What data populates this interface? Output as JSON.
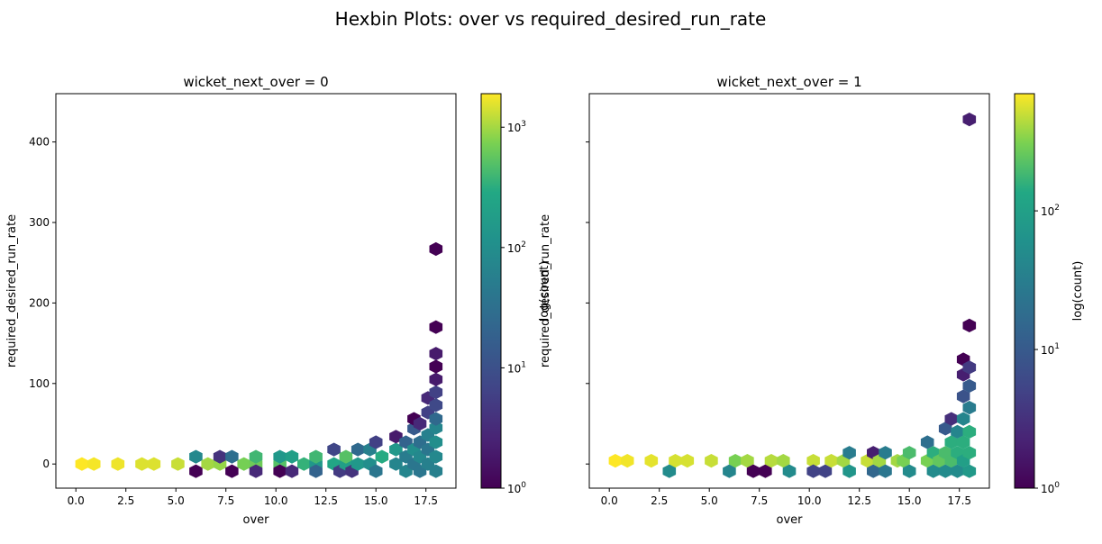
{
  "figure": {
    "suptitle": "Hexbin Plots: over vs required_desired_run_rate"
  },
  "chart_data": [
    {
      "type": "heatmap",
      "subtype": "hexbin",
      "title": "wicket_next_over = 0",
      "xlabel": "over",
      "ylabel": "required_desired_run_rate",
      "xlim": [
        -1,
        19
      ],
      "ylim": [
        -30,
        460
      ],
      "xticks": [
        0.0,
        2.5,
        5.0,
        7.5,
        10.0,
        12.5,
        15.0,
        17.5
      ],
      "xtick_labels": [
        "0.0",
        "2.5",
        "5.0",
        "7.5",
        "10.0",
        "12.5",
        "15.0",
        "17.5"
      ],
      "yticks": [
        0,
        100,
        200,
        300,
        400
      ],
      "ytick_labels": [
        "0",
        "100",
        "200",
        "300",
        "400"
      ],
      "colorbar": {
        "label": "log(count)",
        "scale": "log",
        "range": [
          1,
          1900
        ],
        "tick_labels": [
          {
            "value": 1,
            "base": "10",
            "exp": "0"
          },
          {
            "value": 10,
            "base": "10",
            "exp": "1"
          },
          {
            "value": 100,
            "base": "10",
            "exp": "2"
          },
          {
            "value": 1000,
            "base": "10",
            "exp": "3"
          }
        ]
      },
      "bins": [
        {
          "x": 0.3,
          "y": 0,
          "count": 1900
        },
        {
          "x": 0.9,
          "y": 0,
          "count": 1800
        },
        {
          "x": 2.1,
          "y": 0,
          "count": 1700
        },
        {
          "x": 3.3,
          "y": 0,
          "count": 1500
        },
        {
          "x": 3.9,
          "y": 0,
          "count": 1500
        },
        {
          "x": 5.1,
          "y": 0,
          "count": 1300
        },
        {
          "x": 6.0,
          "y": 9,
          "count": 80
        },
        {
          "x": 6.0,
          "y": -9,
          "count": 1
        },
        {
          "x": 6.6,
          "y": 0,
          "count": 1000
        },
        {
          "x": 7.2,
          "y": 0,
          "count": 900
        },
        {
          "x": 7.2,
          "y": 9,
          "count": 4
        },
        {
          "x": 7.8,
          "y": 9,
          "count": 30
        },
        {
          "x": 7.8,
          "y": -9,
          "count": 1
        },
        {
          "x": 8.4,
          "y": 0,
          "count": 700
        },
        {
          "x": 9.0,
          "y": 0,
          "count": 650
        },
        {
          "x": 9.0,
          "y": 9,
          "count": 400
        },
        {
          "x": 9.0,
          "y": -9,
          "count": 3
        },
        {
          "x": 10.2,
          "y": 0,
          "count": 500
        },
        {
          "x": 10.2,
          "y": 9,
          "count": 150
        },
        {
          "x": 10.2,
          "y": -9,
          "count": 1
        },
        {
          "x": 10.8,
          "y": 9,
          "count": 200
        },
        {
          "x": 10.8,
          "y": -9,
          "count": 3
        },
        {
          "x": 11.4,
          "y": 0,
          "count": 350
        },
        {
          "x": 12.0,
          "y": 0,
          "count": 150
        },
        {
          "x": 12.0,
          "y": 9,
          "count": 400
        },
        {
          "x": 12.0,
          "y": -9,
          "count": 20
        },
        {
          "x": 12.9,
          "y": 0,
          "count": 250
        },
        {
          "x": 12.9,
          "y": 18,
          "count": 7
        },
        {
          "x": 13.2,
          "y": -9,
          "count": 5
        },
        {
          "x": 13.5,
          "y": 0,
          "count": 200
        },
        {
          "x": 13.5,
          "y": 9,
          "count": 500
        },
        {
          "x": 13.8,
          "y": -9,
          "count": 4
        },
        {
          "x": 14.1,
          "y": 0,
          "count": 150
        },
        {
          "x": 14.1,
          "y": 18,
          "count": 25
        },
        {
          "x": 14.7,
          "y": 0,
          "count": 100
        },
        {
          "x": 14.7,
          "y": 18,
          "count": 60
        },
        {
          "x": 15.0,
          "y": -9,
          "count": 40
        },
        {
          "x": 15.0,
          "y": 27,
          "count": 6
        },
        {
          "x": 15.3,
          "y": 9,
          "count": 300
        },
        {
          "x": 16.0,
          "y": 0,
          "count": 70
        },
        {
          "x": 16.0,
          "y": 18,
          "count": 150
        },
        {
          "x": 16.0,
          "y": 34,
          "count": 2
        },
        {
          "x": 16.5,
          "y": -9,
          "count": 70
        },
        {
          "x": 16.5,
          "y": 9,
          "count": 50
        },
        {
          "x": 16.5,
          "y": 27,
          "count": 20
        },
        {
          "x": 16.9,
          "y": 0,
          "count": 40
        },
        {
          "x": 16.9,
          "y": 18,
          "count": 100
        },
        {
          "x": 16.9,
          "y": 44,
          "count": 15
        },
        {
          "x": 16.9,
          "y": 56,
          "count": 1
        },
        {
          "x": 17.2,
          "y": -9,
          "count": 40
        },
        {
          "x": 17.2,
          "y": 9,
          "count": 80
        },
        {
          "x": 17.2,
          "y": 27,
          "count": 30
        },
        {
          "x": 17.2,
          "y": 50,
          "count": 3
        },
        {
          "x": 17.6,
          "y": 0,
          "count": 60
        },
        {
          "x": 17.6,
          "y": 18,
          "count": 40
        },
        {
          "x": 17.6,
          "y": 36,
          "count": 60
        },
        {
          "x": 17.6,
          "y": 64,
          "count": 6
        },
        {
          "x": 17.6,
          "y": 82,
          "count": 3
        },
        {
          "x": 18.0,
          "y": -9,
          "count": 60
        },
        {
          "x": 18.0,
          "y": 9,
          "count": 80
        },
        {
          "x": 18.0,
          "y": 27,
          "count": 100
        },
        {
          "x": 18.0,
          "y": 45,
          "count": 70
        },
        {
          "x": 18.0,
          "y": 56,
          "count": 25
        },
        {
          "x": 18.0,
          "y": 73,
          "count": 8
        },
        {
          "x": 18.0,
          "y": 89,
          "count": 6
        },
        {
          "x": 18.0,
          "y": 105,
          "count": 2
        },
        {
          "x": 18.0,
          "y": 121,
          "count": 1
        },
        {
          "x": 18.0,
          "y": 137,
          "count": 2
        },
        {
          "x": 18.0,
          "y": 170,
          "count": 1
        },
        {
          "x": 18.0,
          "y": 267,
          "count": 1
        }
      ]
    },
    {
      "type": "heatmap",
      "subtype": "hexbin",
      "title": "wicket_next_over = 1",
      "xlabel": "over",
      "ylabel": "required_desired_run_rate",
      "xlim": [
        -1,
        19
      ],
      "ylim": [
        -30,
        460
      ],
      "xticks": [
        0.0,
        2.5,
        5.0,
        7.5,
        10.0,
        12.5,
        15.0,
        17.5
      ],
      "xtick_labels": [
        "0.0",
        "2.5",
        "5.0",
        "7.5",
        "10.0",
        "12.5",
        "15.0",
        "17.5"
      ],
      "yticks": [
        0,
        100,
        200,
        300,
        400
      ],
      "ytick_labels": [],
      "colorbar": {
        "label": "log(count)",
        "scale": "log",
        "range": [
          1,
          700
        ],
        "tick_labels": [
          {
            "value": 1,
            "base": "10",
            "exp": "0"
          },
          {
            "value": 10,
            "base": "10",
            "exp": "1"
          },
          {
            "value": 100,
            "base": "10",
            "exp": "2"
          }
        ]
      },
      "bins": [
        {
          "x": 0.3,
          "y": 4,
          "count": 700
        },
        {
          "x": 0.9,
          "y": 4,
          "count": 650
        },
        {
          "x": 2.1,
          "y": 4,
          "count": 600
        },
        {
          "x": 3.3,
          "y": 4,
          "count": 550
        },
        {
          "x": 3.9,
          "y": 4,
          "count": 550
        },
        {
          "x": 3.0,
          "y": -9,
          "count": 50
        },
        {
          "x": 5.1,
          "y": 4,
          "count": 500
        },
        {
          "x": 6.0,
          "y": -9,
          "count": 40
        },
        {
          "x": 6.3,
          "y": 4,
          "count": 300
        },
        {
          "x": 6.9,
          "y": 4,
          "count": 400
        },
        {
          "x": 7.2,
          "y": -9,
          "count": 1
        },
        {
          "x": 7.8,
          "y": -9,
          "count": 1
        },
        {
          "x": 8.1,
          "y": 4,
          "count": 450
        },
        {
          "x": 8.7,
          "y": 4,
          "count": 400
        },
        {
          "x": 9.0,
          "y": -9,
          "count": 50
        },
        {
          "x": 10.2,
          "y": 4,
          "count": 500
        },
        {
          "x": 10.2,
          "y": -9,
          "count": 5
        },
        {
          "x": 10.8,
          "y": -9,
          "count": 5
        },
        {
          "x": 11.1,
          "y": 4,
          "count": 500
        },
        {
          "x": 11.7,
          "y": 4,
          "count": 400
        },
        {
          "x": 12.0,
          "y": -9,
          "count": 70
        },
        {
          "x": 12.0,
          "y": 14,
          "count": 30
        },
        {
          "x": 12.9,
          "y": 4,
          "count": 500
        },
        {
          "x": 13.2,
          "y": -9,
          "count": 15
        },
        {
          "x": 13.2,
          "y": 14,
          "count": 2
        },
        {
          "x": 13.5,
          "y": 4,
          "count": 400
        },
        {
          "x": 13.8,
          "y": -9,
          "count": 25
        },
        {
          "x": 13.8,
          "y": 14,
          "count": 30
        },
        {
          "x": 14.4,
          "y": 4,
          "count": 400
        },
        {
          "x": 14.7,
          "y": 4,
          "count": 300
        },
        {
          "x": 15.0,
          "y": -9,
          "count": 50
        },
        {
          "x": 15.0,
          "y": 14,
          "count": 200
        },
        {
          "x": 15.9,
          "y": 4,
          "count": 300
        },
        {
          "x": 15.9,
          "y": 27,
          "count": 20
        },
        {
          "x": 16.2,
          "y": -9,
          "count": 50
        },
        {
          "x": 16.2,
          "y": 14,
          "count": 150
        },
        {
          "x": 16.5,
          "y": 4,
          "count": 250
        },
        {
          "x": 16.8,
          "y": -9,
          "count": 50
        },
        {
          "x": 16.8,
          "y": 14,
          "count": 200
        },
        {
          "x": 16.8,
          "y": 44,
          "count": 10
        },
        {
          "x": 17.1,
          "y": 4,
          "count": 200
        },
        {
          "x": 17.1,
          "y": 27,
          "count": 150
        },
        {
          "x": 17.1,
          "y": 56,
          "count": 3
        },
        {
          "x": 17.4,
          "y": -9,
          "count": 50
        },
        {
          "x": 17.4,
          "y": 14,
          "count": 150
        },
        {
          "x": 17.4,
          "y": 40,
          "count": 40
        },
        {
          "x": 17.7,
          "y": 4,
          "count": 100
        },
        {
          "x": 17.7,
          "y": 27,
          "count": 150
        },
        {
          "x": 17.7,
          "y": 56,
          "count": 40
        },
        {
          "x": 17.7,
          "y": 84,
          "count": 8
        },
        {
          "x": 17.7,
          "y": 111,
          "count": 2
        },
        {
          "x": 17.7,
          "y": 130,
          "count": 1
        },
        {
          "x": 18.0,
          "y": -9,
          "count": 80
        },
        {
          "x": 18.0,
          "y": 14,
          "count": 150
        },
        {
          "x": 18.0,
          "y": 40,
          "count": 150
        },
        {
          "x": 18.0,
          "y": 70,
          "count": 30
        },
        {
          "x": 18.0,
          "y": 97,
          "count": 10
        },
        {
          "x": 18.0,
          "y": 120,
          "count": 4
        },
        {
          "x": 18.0,
          "y": 172,
          "count": 1
        },
        {
          "x": 18.0,
          "y": 428,
          "count": 2
        }
      ]
    }
  ]
}
